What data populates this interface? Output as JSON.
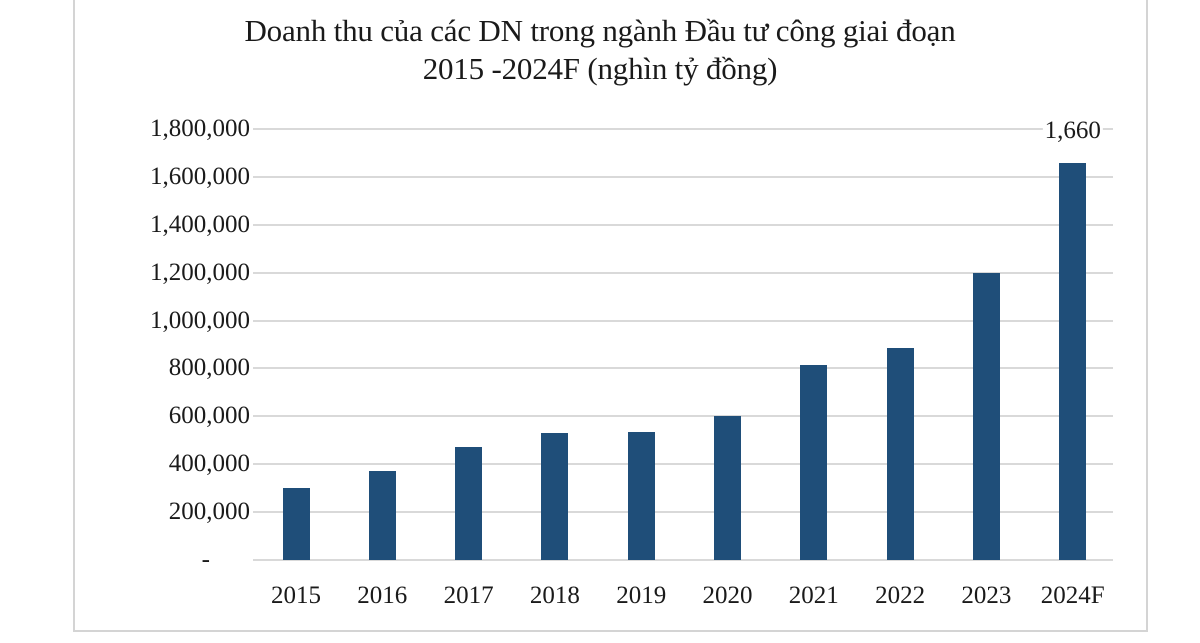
{
  "chart_data": {
    "type": "bar",
    "title": "Doanh thu của các DN trong ngành Đầu tư công giai  đoạn 2015 -2024F  (nghìn tỷ đồng)",
    "title_lines": [
      "Doanh thu của các DN trong ngành Đầu tư công giai  đoạn",
      "2015 -2024F  (nghìn tỷ đồng)"
    ],
    "xlabel": "",
    "ylabel": "",
    "categories": [
      "2015",
      "2016",
      "2017",
      "2018",
      "2019",
      "2020",
      "2021",
      "2022",
      "2023",
      "2024F"
    ],
    "values": [
      300000,
      370000,
      470000,
      530000,
      535000,
      600000,
      815000,
      885000,
      1200000,
      1660000
    ],
    "ylim": [
      0,
      1800000
    ],
    "yticks": [
      0,
      200000,
      400000,
      600000,
      800000,
      1000000,
      1200000,
      1400000,
      1600000,
      1800000
    ],
    "ytick_labels": [
      "-",
      "200,000",
      "400,000",
      "600,000",
      "800,000",
      "1,000,000",
      "1,200,000",
      "1,400,000",
      "1,600,000",
      "1,800,000"
    ],
    "data_labels": [
      {
        "category": "2024F",
        "text": "1,660"
      }
    ],
    "grid": true,
    "legend": null,
    "bar_color": "#1f4e79"
  }
}
